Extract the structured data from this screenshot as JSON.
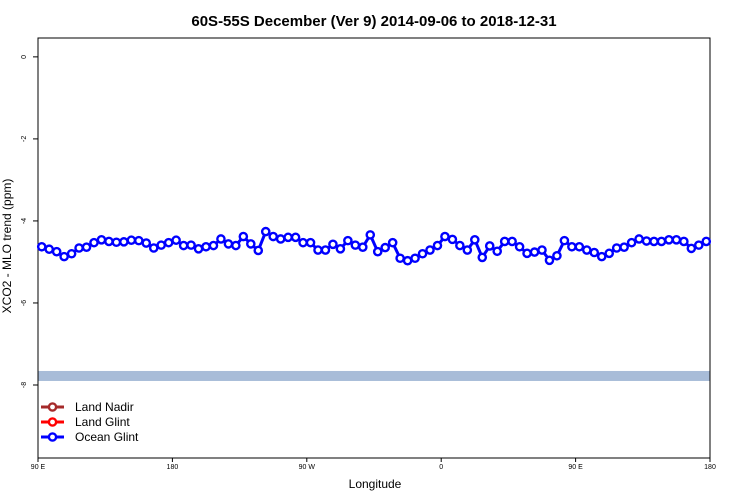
{
  "chart_data": {
    "type": "line",
    "title": "60S-55S December (Ver 9)   2014-09-06 to 2018-12-31",
    "xlabel": "Longitude",
    "ylabel": "XCO2 - MLO trend (ppm)",
    "xlim": [
      90,
      450
    ],
    "ylim": [
      -9.78,
      0.46
    ],
    "xticks": [
      90,
      180,
      270,
      360,
      450,
      540
    ],
    "xtick_labels": [
      "90 E",
      "180",
      "90 W",
      "0",
      "90 E",
      "180"
    ],
    "yticks": [
      0,
      -2,
      -4,
      -6,
      -8
    ],
    "ytick_labels": [
      "0",
      "-2",
      "-4",
      "-6",
      "-8"
    ],
    "grid": false,
    "legend_position": "bottom-left",
    "legend": [
      {
        "name": "Land Nadir",
        "color": "#a52a2a"
      },
      {
        "name": "Land Glint",
        "color": "#ff0000"
      },
      {
        "name": "Ocean Glint",
        "color": "#0000ff"
      }
    ],
    "reference_band": {
      "value": -7.78,
      "color": "#a8bcd8"
    },
    "series": [
      {
        "name": "Ocean Glint",
        "color": "#0000ff",
        "x_start": 92,
        "x_step": 4,
        "values": [
          -4.63,
          -4.69,
          -4.75,
          -4.87,
          -4.8,
          -4.66,
          -4.64,
          -4.53,
          -4.46,
          -4.5,
          -4.52,
          -4.51,
          -4.47,
          -4.48,
          -4.54,
          -4.66,
          -4.59,
          -4.53,
          -4.47,
          -4.6,
          -4.59,
          -4.68,
          -4.63,
          -4.6,
          -4.44,
          -4.56,
          -4.6,
          -4.38,
          -4.56,
          -4.72,
          -4.26,
          -4.38,
          -4.44,
          -4.4,
          -4.4,
          -4.53,
          -4.53,
          -4.71,
          -4.71,
          -4.57,
          -4.68,
          -4.48,
          -4.59,
          -4.64,
          -4.34,
          -4.75,
          -4.65,
          -4.53,
          -4.91,
          -4.97,
          -4.91,
          -4.8,
          -4.71,
          -4.6,
          -4.38,
          -4.45,
          -4.6,
          -4.71,
          -4.46,
          -4.89,
          -4.61,
          -4.74,
          -4.5,
          -4.5,
          -4.63,
          -4.79,
          -4.76,
          -4.71,
          -4.96,
          -4.85,
          -4.48,
          -4.63,
          -4.63,
          -4.71,
          -4.77,
          -4.87,
          -4.79,
          -4.66,
          -4.64,
          -4.53,
          -4.44,
          -4.49,
          -4.5,
          -4.5,
          -4.46,
          -4.46,
          -4.5,
          -4.67,
          -4.59,
          -4.5
        ]
      }
    ]
  }
}
